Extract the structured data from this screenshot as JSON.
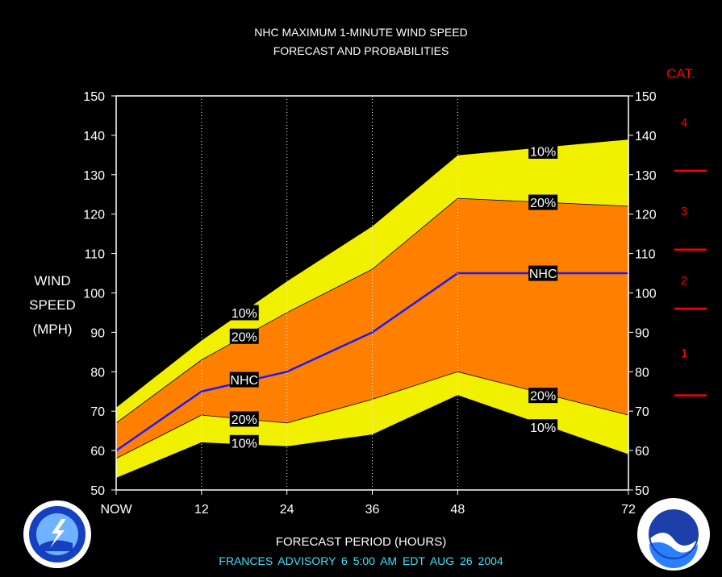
{
  "title_line1": "NHC MAXIMUM 1-MINUTE WIND SPEED",
  "title_line2": "FORECAST AND PROBABILITIES",
  "ylabel_lines": [
    "WIND",
    "SPEED",
    "(MPH)"
  ],
  "xlabel": "FORECAST PERIOD (HOURS)",
  "advisory": "FRANCES   ADVISORY  6 5:00 AM EDT AUG 26 2004",
  "category_title": "CAT.",
  "categories": [
    {
      "label": "4",
      "y": 143
    },
    {
      "label": "3",
      "y": 120.5
    },
    {
      "label": "2",
      "y": 103
    },
    {
      "label": "1",
      "y": 84.5
    }
  ],
  "category_thresholds": [
    131,
    111,
    96,
    74
  ],
  "colors": {
    "background": "#000000",
    "outer_band": "#f0f000",
    "inner_band": "#ff8000",
    "nhc_line": "#1a1aff",
    "category": "#ff0000",
    "advisory_text": "#40e0ff"
  },
  "chart_data": {
    "type": "area",
    "title": "NHC MAXIMUM 1-MINUTE WIND SPEED FORECAST AND PROBABILITIES",
    "xlabel": "FORECAST PERIOD (HOURS)",
    "ylabel": "WIND SPEED (MPH)",
    "x": [
      0,
      12,
      24,
      36,
      48,
      72
    ],
    "x_tick_labels": [
      "NOW",
      "12",
      "24",
      "36",
      "48",
      "72"
    ],
    "xlim": [
      0,
      72
    ],
    "ylim": [
      50,
      150
    ],
    "y_ticks": [
      50,
      60,
      70,
      80,
      90,
      100,
      110,
      120,
      130,
      140,
      150
    ],
    "grid": "vertical dotted at 12, 24, 36, 48",
    "series": [
      {
        "name": "10%",
        "values": [
          71,
          88,
          103,
          117,
          135,
          139
        ]
      },
      {
        "name": "20%",
        "values": [
          67,
          83,
          95,
          106,
          124,
          122
        ]
      },
      {
        "name": "NHC",
        "values": [
          60,
          75,
          80,
          90,
          105,
          105
        ]
      },
      {
        "name": "20%",
        "values": [
          58,
          69,
          67,
          73,
          80,
          69
        ]
      },
      {
        "name": "10%",
        "values": [
          53,
          62,
          61,
          64,
          74,
          59
        ]
      }
    ],
    "annotations": [
      {
        "text": "10%",
        "x": 18,
        "y": 95
      },
      {
        "text": "20%",
        "x": 18,
        "y": 89
      },
      {
        "text": "NHC",
        "x": 18,
        "y": 78
      },
      {
        "text": "20%",
        "x": 18,
        "y": 68
      },
      {
        "text": "10%",
        "x": 18,
        "y": 62
      },
      {
        "text": "10%",
        "x": 60,
        "y": 136
      },
      {
        "text": "20%",
        "x": 60,
        "y": 123
      },
      {
        "text": "NHC",
        "x": 60,
        "y": 105
      },
      {
        "text": "20%",
        "x": 60,
        "y": 74
      },
      {
        "text": "10%",
        "x": 60,
        "y": 66
      }
    ]
  }
}
